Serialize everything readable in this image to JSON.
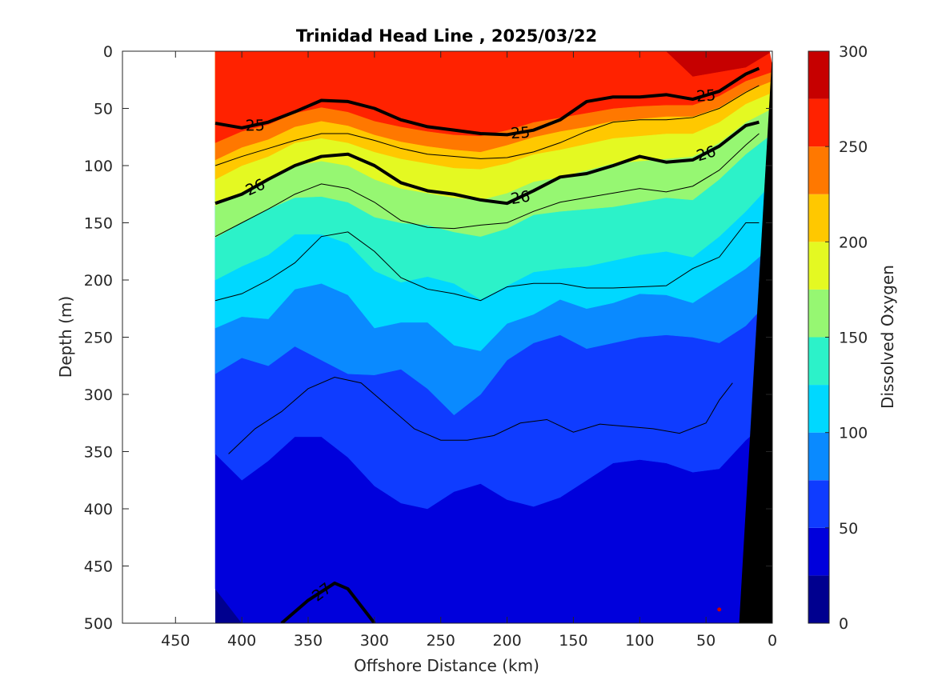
{
  "chart_data": {
    "type": "contour",
    "title": "Trinidad Head Line , 2025/03/22",
    "xlabel": "Offshore Distance (km)",
    "ylabel": "Depth (m)",
    "colorbar_label": "Dissolved Oxygen",
    "xlim": [
      490,
      0
    ],
    "x_reversed": true,
    "ylim": [
      500,
      0
    ],
    "y_reversed": true,
    "xticks": [
      450,
      400,
      350,
      300,
      250,
      200,
      150,
      100,
      50,
      0
    ],
    "yticks": [
      0,
      50,
      100,
      150,
      200,
      250,
      300,
      350,
      400,
      450,
      500
    ],
    "colorbar_ticks": [
      0,
      50,
      100,
      150,
      200,
      250,
      300
    ],
    "colorbar_range": [
      0,
      300
    ],
    "data_x_range": [
      420,
      0
    ],
    "oxygen_bands": [
      {
        "lo": 0,
        "hi": 25,
        "color": "#00008f"
      },
      {
        "lo": 25,
        "hi": 50,
        "color": "#0000dc"
      },
      {
        "lo": 50,
        "hi": 75,
        "color": "#0f3cff"
      },
      {
        "lo": 75,
        "hi": 100,
        "color": "#0a8aff"
      },
      {
        "lo": 100,
        "hi": 125,
        "color": "#00d8ff"
      },
      {
        "lo": 125,
        "hi": 150,
        "color": "#2cf2c9"
      },
      {
        "lo": 150,
        "hi": 175,
        "color": "#96f772"
      },
      {
        "lo": 175,
        "hi": 200,
        "color": "#e4f922"
      },
      {
        "lo": 200,
        "hi": 225,
        "color": "#ffc800"
      },
      {
        "lo": 225,
        "hi": 250,
        "color": "#ff7800"
      },
      {
        "lo": 250,
        "hi": 275,
        "color": "#ff2200"
      },
      {
        "lo": 275,
        "hi": 300,
        "color": "#c60000"
      }
    ],
    "band_boundaries": [
      {
        "oxygen": 25,
        "depth": [
          470,
          500,
          500,
          500,
          500,
          500,
          500,
          500,
          500,
          500,
          500,
          500,
          500,
          500,
          500,
          500,
          500,
          500,
          500,
          500,
          500,
          500
        ]
      },
      {
        "oxygen": 50,
        "depth": [
          352,
          375,
          358,
          337,
          337,
          355,
          380,
          395,
          400,
          385,
          378,
          392,
          398,
          390,
          375,
          360,
          357,
          360,
          368,
          365,
          340,
          320
        ]
      },
      {
        "oxygen": 75,
        "depth": [
          282,
          268,
          275,
          258,
          270,
          282,
          283,
          278,
          295,
          318,
          300,
          270,
          255,
          248,
          260,
          255,
          250,
          248,
          250,
          255,
          240,
          215
        ]
      },
      {
        "oxygen": 100,
        "depth": [
          242,
          232,
          234,
          208,
          203,
          213,
          242,
          237,
          237,
          257,
          262,
          238,
          230,
          217,
          225,
          220,
          212,
          213,
          220,
          205,
          190,
          170
        ]
      },
      {
        "oxygen": 125,
        "depth": [
          200,
          188,
          178,
          160,
          160,
          168,
          192,
          202,
          197,
          203,
          217,
          205,
          193,
          190,
          188,
          183,
          178,
          175,
          180,
          162,
          140,
          115
        ]
      },
      {
        "oxygen": 150,
        "depth": [
          163,
          150,
          138,
          128,
          127,
          132,
          145,
          150,
          152,
          158,
          162,
          155,
          143,
          140,
          138,
          136,
          132,
          128,
          130,
          112,
          90,
          72
        ]
      },
      {
        "oxygen": 175,
        "depth": [
          135,
          123,
          112,
          100,
          96,
          100,
          112,
          120,
          124,
          128,
          130,
          124,
          114,
          110,
          104,
          98,
          96,
          94,
          92,
          80,
          62,
          50
        ]
      },
      {
        "oxygen": 200,
        "depth": [
          112,
          100,
          92,
          80,
          76,
          80,
          88,
          94,
          98,
          102,
          103,
          98,
          90,
          86,
          81,
          76,
          74,
          72,
          72,
          62,
          46,
          36
        ]
      },
      {
        "oxygen": 225,
        "depth": [
          95,
          84,
          77,
          66,
          61,
          65,
          73,
          79,
          83,
          86,
          88,
          82,
          75,
          70,
          66,
          61,
          59,
          57,
          57,
          49,
          35,
          26
        ]
      },
      {
        "oxygen": 250,
        "depth": [
          80,
          70,
          64,
          54,
          49,
          53,
          61,
          66,
          70,
          73,
          74,
          69,
          62,
          58,
          54,
          50,
          48,
          47,
          47,
          39,
          26,
          18
        ]
      },
      {
        "oxygen": 275,
        "depth": [
          0,
          0,
          0,
          0,
          0,
          0,
          0,
          0,
          0,
          0,
          0,
          0,
          0,
          0,
          0,
          0,
          0,
          0,
          22,
          18,
          14,
          0
        ]
      }
    ],
    "band_boundary_x": [
      420,
      400,
      380,
      360,
      340,
      320,
      300,
      280,
      260,
      240,
      220,
      200,
      180,
      160,
      140,
      120,
      100,
      80,
      60,
      40,
      20,
      0
    ],
    "density_contours": [
      {
        "label": "25",
        "x": [
          420,
          400,
          380,
          360,
          340,
          320,
          300,
          280,
          260,
          240,
          220,
          200,
          180,
          160,
          140,
          120,
          100,
          80,
          60,
          40,
          20,
          10
        ],
        "depth": [
          63,
          67,
          62,
          53,
          43,
          44,
          50,
          60,
          66,
          69,
          72,
          73,
          69,
          60,
          44,
          40,
          40,
          38,
          42,
          35,
          20,
          15
        ]
      },
      {
        "label": "26",
        "x": [
          420,
          400,
          380,
          360,
          340,
          320,
          300,
          280,
          260,
          240,
          220,
          200,
          180,
          160,
          140,
          120,
          100,
          80,
          60,
          40,
          20,
          10
        ],
        "depth": [
          133,
          125,
          112,
          100,
          92,
          90,
          100,
          115,
          122,
          125,
          130,
          133,
          122,
          110,
          107,
          100,
          92,
          97,
          95,
          83,
          65,
          62
        ]
      },
      {
        "label": "27",
        "x": [
          370,
          350,
          330,
          320,
          300
        ],
        "depth": [
          500,
          480,
          465,
          470,
          500
        ]
      }
    ],
    "thin_contours": [
      {
        "x": [
          420,
          400,
          380,
          360,
          340,
          320,
          300,
          280,
          260,
          240,
          220,
          200,
          180,
          160,
          140,
          120,
          100,
          80,
          60,
          40,
          20,
          10
        ],
        "depth": [
          100,
          92,
          85,
          78,
          72,
          72,
          78,
          85,
          90,
          92,
          94,
          93,
          88,
          80,
          70,
          62,
          60,
          60,
          58,
          50,
          36,
          30
        ]
      },
      {
        "x": [
          420,
          400,
          380,
          360,
          340,
          320,
          300,
          280,
          260,
          240,
          220,
          200,
          180,
          160,
          140,
          120,
          100,
          80,
          60,
          40,
          20,
          10
        ],
        "depth": [
          162,
          150,
          138,
          125,
          116,
          120,
          132,
          148,
          154,
          155,
          152,
          150,
          140,
          132,
          128,
          124,
          120,
          123,
          118,
          104,
          82,
          72
        ]
      },
      {
        "x": [
          420,
          400,
          380,
          360,
          340,
          320,
          300,
          280,
          260,
          240,
          220,
          200,
          180,
          160,
          140,
          120,
          100,
          80,
          60,
          40,
          20,
          10
        ],
        "depth": [
          218,
          212,
          200,
          185,
          162,
          158,
          175,
          198,
          208,
          212,
          218,
          206,
          203,
          203,
          207,
          207,
          206,
          205,
          190,
          180,
          150,
          150
        ]
      },
      {
        "x": [
          410,
          390,
          370,
          350,
          330,
          310,
          290,
          270,
          250,
          230,
          210,
          190,
          170,
          150,
          130,
          110,
          90,
          70,
          50,
          40,
          30
        ],
        "depth": [
          352,
          330,
          315,
          295,
          285,
          290,
          310,
          330,
          340,
          340,
          336,
          325,
          322,
          333,
          326,
          328,
          330,
          334,
          325,
          305,
          290
        ]
      }
    ],
    "bathymetry": {
      "x": [
        25,
        0,
        0
      ],
      "depth": [
        500,
        500,
        0
      ]
    },
    "data_markers": [
      {
        "x": 40,
        "depth": 488
      }
    ]
  }
}
